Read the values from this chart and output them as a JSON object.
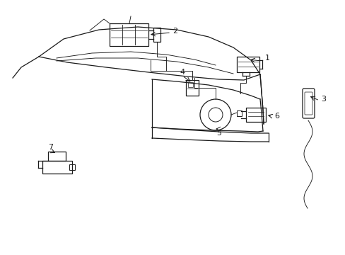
{
  "background_color": "#ffffff",
  "line_color": "#1a1a1a",
  "lw": 0.9,
  "tlw": 0.65,
  "figsize": [
    4.89,
    3.6
  ],
  "dpi": 100
}
